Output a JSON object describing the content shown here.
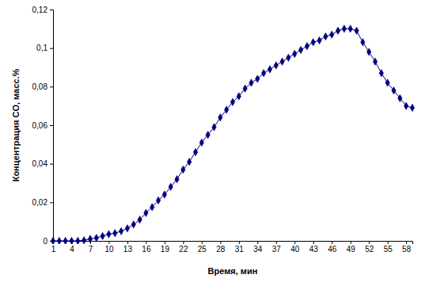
{
  "chart_data": {
    "type": "line",
    "x_label": "Время, мин",
    "y_label": "Концентрация CO, масс.%",
    "x": [
      1,
      2,
      3,
      4,
      5,
      6,
      7,
      8,
      9,
      10,
      11,
      12,
      13,
      14,
      15,
      16,
      17,
      18,
      19,
      20,
      21,
      22,
      23,
      24,
      25,
      26,
      27,
      28,
      29,
      30,
      31,
      32,
      33,
      34,
      35,
      36,
      37,
      38,
      39,
      40,
      41,
      42,
      43,
      44,
      45,
      46,
      47,
      48,
      49,
      50,
      51,
      52,
      53,
      54,
      55,
      56,
      57,
      58,
      59
    ],
    "values": [
      0,
      0,
      0,
      0,
      0,
      0.0003,
      0.001,
      0.0015,
      0.0025,
      0.0035,
      0.004,
      0.005,
      0.0065,
      0.0085,
      0.011,
      0.0145,
      0.0175,
      0.021,
      0.024,
      0.028,
      0.032,
      0.037,
      0.041,
      0.046,
      0.051,
      0.055,
      0.059,
      0.064,
      0.068,
      0.072,
      0.075,
      0.079,
      0.082,
      0.084,
      0.087,
      0.089,
      0.091,
      0.093,
      0.095,
      0.097,
      0.099,
      0.101,
      0.103,
      0.104,
      0.106,
      0.107,
      0.109,
      0.11,
      0.11,
      0.109,
      0.103,
      0.098,
      0.093,
      0.087,
      0.082,
      0.078,
      0.074,
      0.07,
      0.069
    ],
    "color": "#000080",
    "marker": "diamond",
    "line_style": "solid",
    "grid": false,
    "xlim": [
      1,
      59
    ],
    "xticks": [
      1,
      4,
      7,
      10,
      13,
      16,
      19,
      22,
      25,
      28,
      31,
      34,
      37,
      40,
      43,
      46,
      49,
      52,
      55,
      58
    ],
    "ylim": [
      0,
      0.12
    ],
    "yticks": [
      0,
      {
        "value": 0.02,
        "label": "0,02"
      },
      {
        "value": 0.04,
        "label": "0,04"
      },
      {
        "value": 0.06,
        "label": "0,06"
      },
      {
        "value": 0.08,
        "label": "0,08"
      },
      {
        "value": 0.1,
        "label": "0,1"
      },
      {
        "value": 0.12,
        "label": "0,12"
      }
    ]
  }
}
